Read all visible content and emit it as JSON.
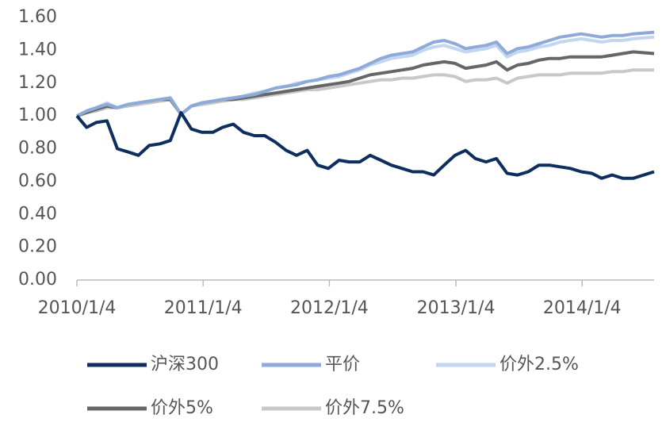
{
  "chart_data": {
    "type": "line",
    "x": [
      "2010/1/4",
      "2010/2/1",
      "2010/3/1",
      "2010/4/1",
      "2010/5/1",
      "2010/6/1",
      "2010/7/1",
      "2010/8/1",
      "2010/9/1",
      "2010/10/1",
      "2010/11/1",
      "2010/12/1",
      "2011/1/1",
      "2011/2/1",
      "2011/3/1",
      "2011/4/1",
      "2011/5/1",
      "2011/6/1",
      "2011/7/1",
      "2011/8/1",
      "2011/9/1",
      "2011/10/1",
      "2011/11/1",
      "2011/12/1",
      "2012/1/1",
      "2012/2/1",
      "2012/3/1",
      "2012/4/1",
      "2012/5/1",
      "2012/6/1",
      "2012/7/1",
      "2012/8/1",
      "2012/9/1",
      "2012/10/1",
      "2012/11/1",
      "2012/12/1",
      "2013/1/1",
      "2013/2/1",
      "2013/3/1",
      "2013/4/1",
      "2013/5/1",
      "2013/6/1",
      "2013/7/1",
      "2013/8/1",
      "2013/9/1",
      "2013/10/1",
      "2013/11/1",
      "2013/12/1",
      "2014/1/1",
      "2014/2/1",
      "2014/3/1",
      "2014/4/1",
      "2014/5/1",
      "2014/6/1",
      "2014/7/31"
    ],
    "series": [
      {
        "name": "沪深300",
        "color": "#0e2f5e",
        "values": [
          1.0,
          0.93,
          0.96,
          0.97,
          0.8,
          0.78,
          0.76,
          0.82,
          0.83,
          0.85,
          1.02,
          0.92,
          0.9,
          0.9,
          0.93,
          0.95,
          0.9,
          0.88,
          0.88,
          0.84,
          0.79,
          0.76,
          0.79,
          0.7,
          0.68,
          0.73,
          0.72,
          0.72,
          0.76,
          0.73,
          0.7,
          0.68,
          0.66,
          0.66,
          0.64,
          0.7,
          0.76,
          0.79,
          0.74,
          0.72,
          0.74,
          0.65,
          0.64,
          0.66,
          0.7,
          0.7,
          0.69,
          0.68,
          0.66,
          0.65,
          0.62,
          0.64,
          0.62,
          0.62,
          0.66
        ]
      },
      {
        "name": "平价",
        "color": "#8eaad8",
        "values": [
          1.0,
          1.03,
          1.05,
          1.07,
          1.05,
          1.07,
          1.08,
          1.09,
          1.1,
          1.11,
          1.01,
          1.06,
          1.08,
          1.09,
          1.1,
          1.11,
          1.12,
          1.13,
          1.15,
          1.17,
          1.18,
          1.19,
          1.21,
          1.22,
          1.24,
          1.25,
          1.27,
          1.29,
          1.32,
          1.35,
          1.37,
          1.38,
          1.39,
          1.42,
          1.45,
          1.46,
          1.44,
          1.41,
          1.42,
          1.43,
          1.45,
          1.38,
          1.41,
          1.42,
          1.44,
          1.46,
          1.48,
          1.49,
          1.5,
          1.49,
          1.48,
          1.49,
          1.49,
          1.5,
          1.51
        ]
      },
      {
        "name": "价外2.5%",
        "color": "#c3d6ef",
        "values": [
          1.0,
          1.03,
          1.05,
          1.08,
          1.05,
          1.07,
          1.08,
          1.09,
          1.1,
          1.11,
          1.01,
          1.06,
          1.08,
          1.09,
          1.1,
          1.11,
          1.12,
          1.14,
          1.15,
          1.17,
          1.18,
          1.2,
          1.21,
          1.22,
          1.23,
          1.24,
          1.26,
          1.28,
          1.31,
          1.33,
          1.35,
          1.36,
          1.37,
          1.4,
          1.42,
          1.43,
          1.41,
          1.39,
          1.4,
          1.41,
          1.43,
          1.36,
          1.39,
          1.4,
          1.42,
          1.43,
          1.45,
          1.46,
          1.47,
          1.46,
          1.45,
          1.46,
          1.46,
          1.47,
          1.48
        ]
      },
      {
        "name": "价外5%",
        "color": "#666666",
        "values": [
          1.0,
          1.02,
          1.04,
          1.06,
          1.05,
          1.07,
          1.08,
          1.09,
          1.1,
          1.1,
          1.01,
          1.06,
          1.08,
          1.09,
          1.1,
          1.1,
          1.11,
          1.12,
          1.13,
          1.14,
          1.15,
          1.16,
          1.17,
          1.18,
          1.19,
          1.2,
          1.21,
          1.23,
          1.25,
          1.26,
          1.27,
          1.28,
          1.29,
          1.31,
          1.32,
          1.33,
          1.32,
          1.29,
          1.3,
          1.31,
          1.33,
          1.28,
          1.31,
          1.32,
          1.34,
          1.35,
          1.35,
          1.36,
          1.36,
          1.36,
          1.36,
          1.37,
          1.38,
          1.39,
          1.38
        ]
      },
      {
        "name": "价外7.5%",
        "color": "#c8c8c8",
        "values": [
          1.0,
          1.02,
          1.03,
          1.05,
          1.05,
          1.06,
          1.07,
          1.08,
          1.09,
          1.1,
          1.01,
          1.06,
          1.07,
          1.08,
          1.09,
          1.1,
          1.1,
          1.11,
          1.12,
          1.13,
          1.14,
          1.15,
          1.16,
          1.16,
          1.17,
          1.18,
          1.19,
          1.2,
          1.21,
          1.22,
          1.22,
          1.23,
          1.23,
          1.24,
          1.25,
          1.25,
          1.24,
          1.21,
          1.22,
          1.22,
          1.23,
          1.2,
          1.23,
          1.24,
          1.25,
          1.25,
          1.25,
          1.26,
          1.26,
          1.26,
          1.26,
          1.27,
          1.27,
          1.28,
          1.28
        ]
      }
    ],
    "xlim": [
      "2010/1/4",
      "2014/7/31"
    ],
    "xticks": [
      "2010/1/4",
      "2011/1/4",
      "2012/1/4",
      "2013/1/4",
      "2014/1/4"
    ],
    "ylim": [
      0,
      1.6
    ],
    "yticks": [
      {
        "value": 0,
        "label": "0.00"
      },
      {
        "value": 0.2,
        "label": "0.20"
      },
      {
        "value": 0.4,
        "label": "0.40"
      },
      {
        "value": 0.6,
        "label": "0.60"
      },
      {
        "value": 0.8,
        "label": "0.80"
      },
      {
        "value": 1.0,
        "label": "1.00"
      },
      {
        "value": 1.2,
        "label": "1.20"
      },
      {
        "value": 1.4,
        "label": "1.40"
      },
      {
        "value": 1.6,
        "label": "1.60"
      }
    ]
  }
}
